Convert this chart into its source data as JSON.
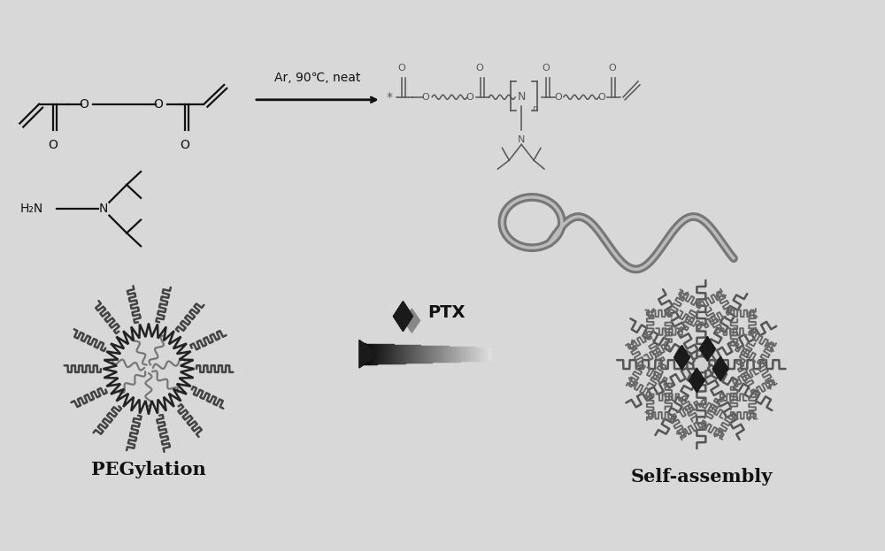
{
  "bg_color": "#d8d8d8",
  "reaction_condition": "Ar, 90℃, neat",
  "label_pegylation": "PEGylation",
  "label_selfassembly": "Self-assembly",
  "label_ptx": "PTX",
  "font_color": "#111111",
  "arrow_color": "#111111",
  "chain_color": "#555555",
  "dark_color": "#222222",
  "mol_color": "#111111",
  "ptx_color": "#1a1a1a",
  "polymer_color": "#888888"
}
